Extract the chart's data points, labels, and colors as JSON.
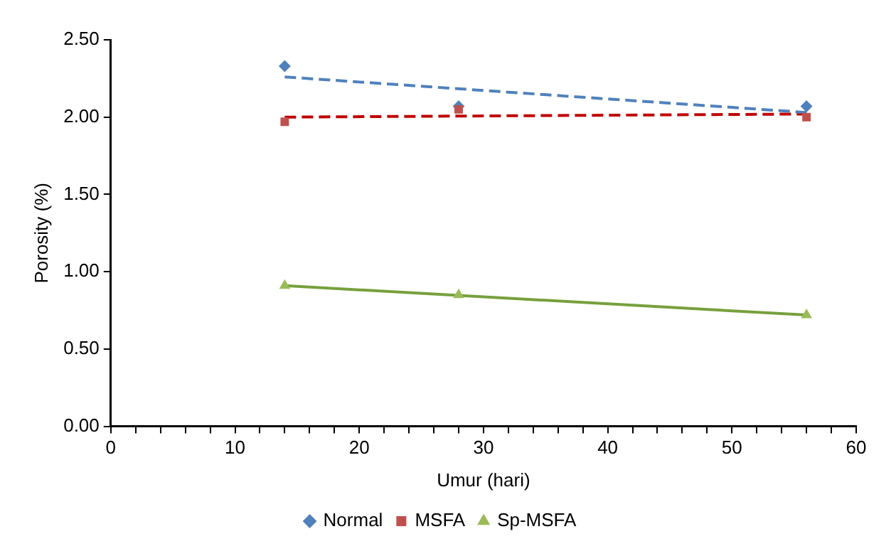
{
  "chart_data": {
    "type": "scatter",
    "xlabel": "Umur (hari)",
    "ylabel": "Porosity (%)",
    "xlim": [
      0,
      60
    ],
    "xticks": [
      0,
      {
        "value": 2,
        "label": null
      },
      {
        "value": 4,
        "label": null
      },
      {
        "value": 6,
        "label": null
      },
      {
        "value": 8,
        "label": null
      },
      10,
      {
        "value": 12,
        "label": null
      },
      {
        "value": 14,
        "label": null
      },
      {
        "value": 16,
        "label": null
      },
      {
        "value": 18,
        "label": null
      },
      20,
      {
        "value": 22,
        "label": null
      },
      {
        "value": 24,
        "label": null
      },
      {
        "value": 26,
        "label": null
      },
      {
        "value": 28,
        "label": null
      },
      30,
      {
        "value": 32,
        "label": null
      },
      {
        "value": 34,
        "label": null
      },
      {
        "value": 36,
        "label": null
      },
      {
        "value": 38,
        "label": null
      },
      40,
      {
        "value": 42,
        "label": null
      },
      {
        "value": 44,
        "label": null
      },
      {
        "value": 46,
        "label": null
      },
      {
        "value": 48,
        "label": null
      },
      50,
      {
        "value": 52,
        "label": null
      },
      {
        "value": 54,
        "label": null
      },
      {
        "value": 56,
        "label": null
      },
      {
        "value": 58,
        "label": null
      },
      60
    ],
    "ylim": [
      0,
      2.5
    ],
    "yticks": [
      {
        "value": 0,
        "label": "0.00"
      },
      {
        "value": 0.5,
        "label": "0.50"
      },
      {
        "value": 1,
        "label": "1.00"
      },
      {
        "value": 1.5,
        "label": "1.50"
      },
      {
        "value": 2,
        "label": "2.00"
      },
      {
        "value": 2.5,
        "label": "2.50"
      }
    ],
    "grid": false,
    "legend": "bottom",
    "series": [
      {
        "name": "Normal",
        "color": "#4f81bd",
        "marker": "diamond",
        "x": [
          14,
          28,
          56
        ],
        "values": [
          2.33,
          2.07,
          2.07
        ]
      },
      {
        "name": "MSFA",
        "color": "#c0504d",
        "marker": "square",
        "x": [
          14,
          28,
          56
        ],
        "values": [
          1.97,
          2.05,
          2.0
        ]
      },
      {
        "name": "Sp-MSFA",
        "color": "#9bbb59",
        "marker": "triangle",
        "x": [
          14,
          28,
          56
        ],
        "values": [
          0.91,
          0.85,
          0.72
        ]
      },
      {
        "type": "line",
        "color": "#4f81bd",
        "line_style": "dashed",
        "marker": "none",
        "x": [
          14,
          56
        ],
        "values": [
          2.26,
          2.03
        ]
      },
      {
        "type": "line",
        "color": "#c00000",
        "line_style": "dashed",
        "marker": "none",
        "x": [
          14,
          56
        ],
        "values": [
          2.0,
          2.02
        ]
      },
      {
        "type": "line",
        "color": "#77a03c",
        "line_style": "solid",
        "marker": "none",
        "x": [
          14,
          56
        ],
        "values": [
          0.91,
          0.72
        ]
      }
    ]
  }
}
